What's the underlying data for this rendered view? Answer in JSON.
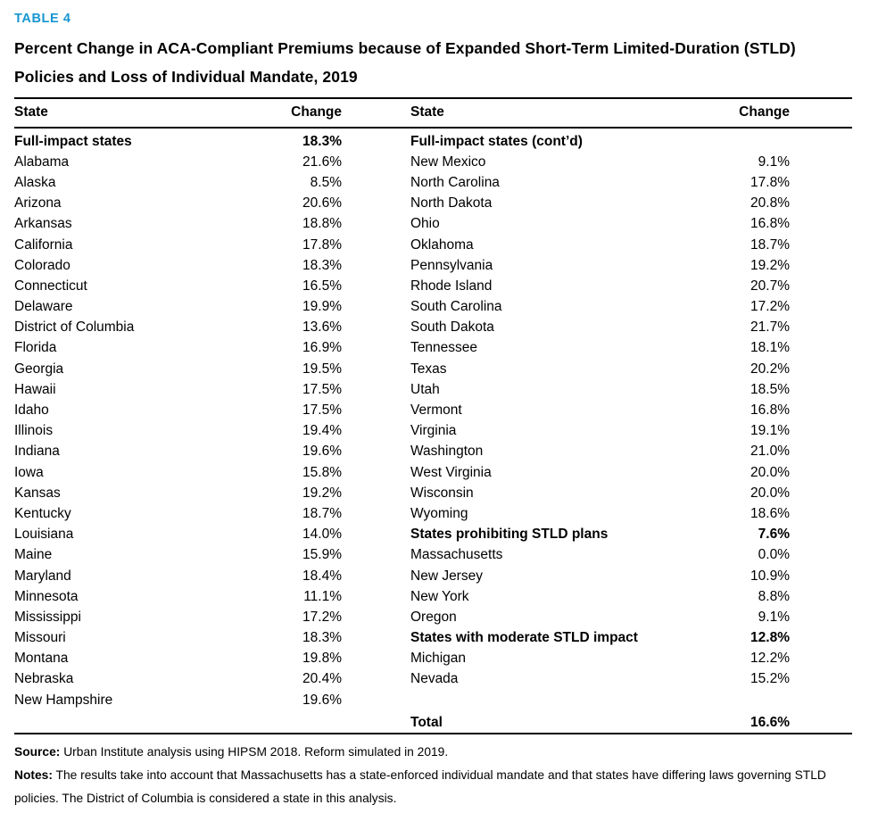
{
  "table_label": "TABLE 4",
  "title": "Percent Change in ACA-Compliant Premiums because of Expanded Short-Term Limited-Duration (STLD) Policies and Loss of Individual Mandate, 2019",
  "columns": {
    "state": "State",
    "change": "Change"
  },
  "left_rows": [
    {
      "state": "Full-impact states",
      "change": "18.3%",
      "bold": true
    },
    {
      "state": "Alabama",
      "change": "21.6%"
    },
    {
      "state": "Alaska",
      "change": "8.5%"
    },
    {
      "state": "Arizona",
      "change": "20.6%"
    },
    {
      "state": "Arkansas",
      "change": "18.8%"
    },
    {
      "state": "California",
      "change": "17.8%"
    },
    {
      "state": "Colorado",
      "change": "18.3%"
    },
    {
      "state": "Connecticut",
      "change": "16.5%"
    },
    {
      "state": "Delaware",
      "change": "19.9%"
    },
    {
      "state": "District of Columbia",
      "change": "13.6%"
    },
    {
      "state": "Florida",
      "change": "16.9%"
    },
    {
      "state": "Georgia",
      "change": "19.5%"
    },
    {
      "state": "Hawaii",
      "change": "17.5%"
    },
    {
      "state": "Idaho",
      "change": "17.5%"
    },
    {
      "state": "Illinois",
      "change": "19.4%"
    },
    {
      "state": "Indiana",
      "change": "19.6%"
    },
    {
      "state": "Iowa",
      "change": "15.8%"
    },
    {
      "state": "Kansas",
      "change": "19.2%"
    },
    {
      "state": "Kentucky",
      "change": "18.7%"
    },
    {
      "state": "Louisiana",
      "change": "14.0%"
    },
    {
      "state": "Maine",
      "change": "15.9%"
    },
    {
      "state": "Maryland",
      "change": "18.4%"
    },
    {
      "state": "Minnesota",
      "change": "11.1%"
    },
    {
      "state": "Mississippi",
      "change": "17.2%"
    },
    {
      "state": "Missouri",
      "change": "18.3%"
    },
    {
      "state": "Montana",
      "change": "19.8%"
    },
    {
      "state": "Nebraska",
      "change": "20.4%"
    },
    {
      "state": "New Hampshire",
      "change": "19.6%"
    }
  ],
  "right_rows": [
    {
      "state": "Full-impact states (cont’d)",
      "change": "",
      "bold": true
    },
    {
      "state": "New Mexico",
      "change": "9.1%"
    },
    {
      "state": "North Carolina",
      "change": "17.8%"
    },
    {
      "state": "North Dakota",
      "change": "20.8%"
    },
    {
      "state": "Ohio",
      "change": "16.8%"
    },
    {
      "state": "Oklahoma",
      "change": "18.7%"
    },
    {
      "state": "Pennsylvania",
      "change": "19.2%"
    },
    {
      "state": "Rhode Island",
      "change": "20.7%"
    },
    {
      "state": "South Carolina",
      "change": "17.2%"
    },
    {
      "state": "South Dakota",
      "change": "21.7%"
    },
    {
      "state": "Tennessee",
      "change": "18.1%"
    },
    {
      "state": "Texas",
      "change": "20.2%"
    },
    {
      "state": "Utah",
      "change": "18.5%"
    },
    {
      "state": "Vermont",
      "change": "16.8%"
    },
    {
      "state": "Virginia",
      "change": "19.1%"
    },
    {
      "state": "Washington",
      "change": "21.0%"
    },
    {
      "state": "West Virginia",
      "change": "20.0%"
    },
    {
      "state": "Wisconsin",
      "change": "20.0%"
    },
    {
      "state": "Wyoming",
      "change": "18.6%"
    },
    {
      "state": "States prohibiting STLD plans",
      "change": "7.6%",
      "bold": true
    },
    {
      "state": "Massachusetts",
      "change": "0.0%"
    },
    {
      "state": "New Jersey",
      "change": "10.9%"
    },
    {
      "state": "New York",
      "change": "8.8%"
    },
    {
      "state": "Oregon",
      "change": "9.1%"
    },
    {
      "state": "States with moderate STLD impact",
      "change": "12.8%",
      "bold": true
    },
    {
      "state": "Michigan",
      "change": "12.2%"
    },
    {
      "state": "Nevada",
      "change": "15.2%"
    }
  ],
  "total_row": {
    "state": "Total",
    "change": "16.6%"
  },
  "footer": {
    "source_label": "Source:",
    "source_text": " Urban Institute analysis using HIPSM 2018. Reform simulated in 2019.",
    "notes_label": "Notes:",
    "notes_text": " The results take into account that Massachusetts has a state-enforced individual mandate and that states have differing laws governing STLD policies. The District of Columbia is considered a state in this analysis."
  },
  "colors": {
    "accent": "#1696d2",
    "text": "#000000",
    "rule": "#000000"
  }
}
